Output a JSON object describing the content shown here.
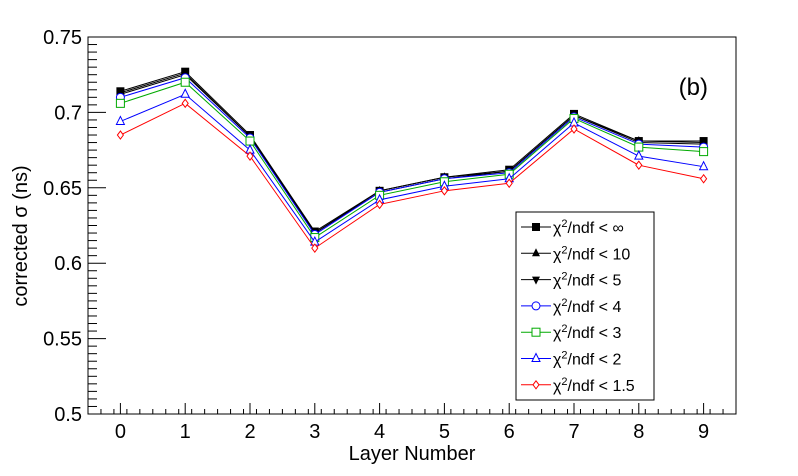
{
  "chart_data": {
    "type": "line",
    "title": "",
    "annotation": "(b)",
    "xlabel": "Layer Number",
    "ylabel": "corrected σ (ns)",
    "xlim": [
      -0.5,
      9.5
    ],
    "ylim": [
      0.5,
      0.75
    ],
    "grid": false,
    "legend_position": "bottom-right",
    "x": [
      0,
      1,
      2,
      3,
      4,
      5,
      6,
      7,
      8,
      9
    ],
    "x_tick_labels": [
      "0",
      "1",
      "2",
      "3",
      "4",
      "5",
      "6",
      "7",
      "8",
      "9"
    ],
    "y_ticks": [
      0.5,
      0.55,
      0.6,
      0.65,
      0.7,
      0.75
    ],
    "y_tick_labels": [
      "0.5",
      "0.55",
      "0.6",
      "0.65",
      "0.7",
      "0.75"
    ],
    "series": [
      {
        "name": "χ²/ndf < ∞",
        "legend_main": "χ",
        "legend_sup": "2",
        "legend_rest": "/ndf < ∞",
        "color": "#000000",
        "marker": "filled-square",
        "values": [
          0.714,
          0.727,
          0.685,
          0.621,
          0.648,
          0.657,
          0.662,
          0.699,
          0.681,
          0.681
        ]
      },
      {
        "name": "χ²/ndf < 10",
        "legend_main": "χ",
        "legend_sup": "2",
        "legend_rest": "/ndf < 10",
        "color": "#000000",
        "marker": "filled-triangle-up",
        "values": [
          0.713,
          0.726,
          0.684,
          0.62,
          0.648,
          0.657,
          0.661,
          0.698,
          0.681,
          0.68
        ]
      },
      {
        "name": "χ²/ndf < 5",
        "legend_main": "χ",
        "legend_sup": "2",
        "legend_rest": "/ndf < 5",
        "color": "#000000",
        "marker": "filled-triangle-down",
        "values": [
          0.712,
          0.725,
          0.684,
          0.62,
          0.647,
          0.656,
          0.661,
          0.698,
          0.68,
          0.679
        ]
      },
      {
        "name": "χ²/ndf < 4",
        "legend_main": "χ",
        "legend_sup": "2",
        "legend_rest": "/ndf < 4",
        "color": "#0000ff",
        "marker": "open-circle",
        "values": [
          0.71,
          0.723,
          0.683,
          0.619,
          0.647,
          0.656,
          0.66,
          0.697,
          0.679,
          0.677
        ]
      },
      {
        "name": "χ²/ndf < 3",
        "legend_main": "χ",
        "legend_sup": "2",
        "legend_rest": "/ndf < 3",
        "color": "#00aa00",
        "marker": "open-square",
        "values": [
          0.706,
          0.72,
          0.681,
          0.617,
          0.645,
          0.654,
          0.659,
          0.696,
          0.677,
          0.674
        ]
      },
      {
        "name": "χ²/ndf < 2",
        "legend_main": "χ",
        "legend_sup": "2",
        "legend_rest": "/ndf < 2",
        "color": "#0000ff",
        "marker": "open-triangle-up",
        "values": [
          0.694,
          0.712,
          0.675,
          0.614,
          0.642,
          0.651,
          0.656,
          0.693,
          0.671,
          0.664
        ]
      },
      {
        "name": "χ²/ndf < 1.5",
        "legend_main": "χ",
        "legend_sup": "2",
        "legend_rest": "/ndf < 1.5",
        "color": "#ff0000",
        "marker": "open-diamond",
        "values": [
          0.685,
          0.706,
          0.671,
          0.61,
          0.639,
          0.648,
          0.653,
          0.689,
          0.665,
          0.656
        ]
      }
    ]
  }
}
